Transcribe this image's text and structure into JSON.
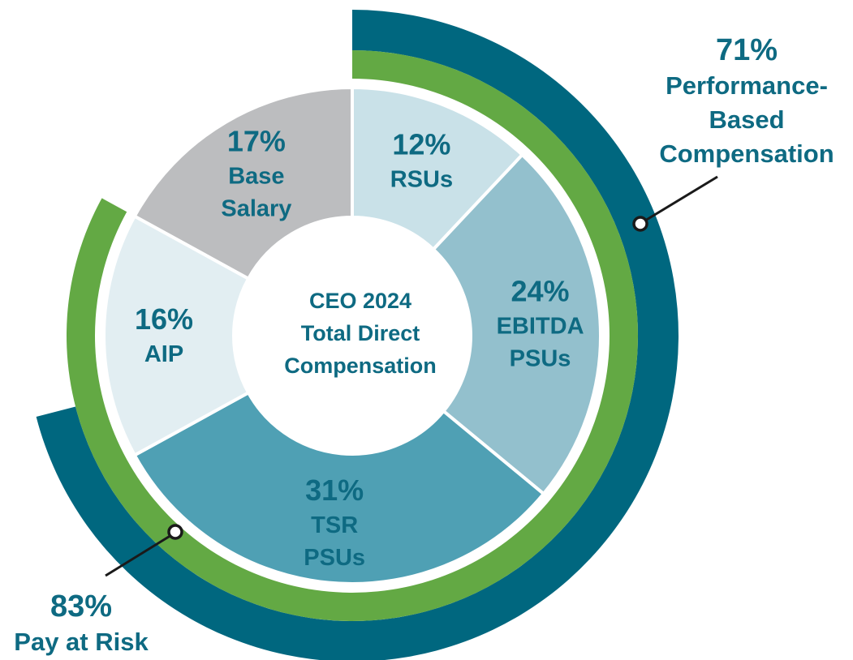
{
  "chart_data": {
    "type": "pie",
    "title": "CEO 2024 Total Direct Compensation",
    "center_lines": [
      "CEO 2024",
      "Total Direct",
      "Compensation"
    ],
    "slices": [
      {
        "name": "RSUs",
        "lines": [
          "RSUs"
        ],
        "value": 12,
        "pct": "12%",
        "color": "#c9e1e8"
      },
      {
        "name": "EBITDA PSUs",
        "lines": [
          "EBITDA",
          "PSUs"
        ],
        "value": 24,
        "pct": "24%",
        "color": "#93c0cd"
      },
      {
        "name": "TSR PSUs",
        "lines": [
          "TSR",
          "PSUs"
        ],
        "value": 31,
        "pct": "31%",
        "color": "#4fa0b4"
      },
      {
        "name": "AIP",
        "lines": [
          "AIP"
        ],
        "value": 16,
        "pct": "16%",
        "color": "#e2eef2"
      },
      {
        "name": "Base Salary",
        "lines": [
          "Base",
          "Salary"
        ],
        "value": 17,
        "pct": "17%",
        "color": "#bcbdbf"
      }
    ],
    "rings": [
      {
        "name": "Pay at Risk",
        "value": 83,
        "pct": "83%",
        "lines": [
          "Pay at Risk"
        ],
        "color": "#63a944"
      },
      {
        "name": "Performance-Based Compensation",
        "value": 71,
        "pct": "71%",
        "lines": [
          "Performance-",
          "Based",
          "Compensation"
        ],
        "color": "#00677f"
      }
    ],
    "colors": {
      "text": "#0e6a82",
      "divider": "#ffffff",
      "leader": "#1a1a1a"
    }
  }
}
